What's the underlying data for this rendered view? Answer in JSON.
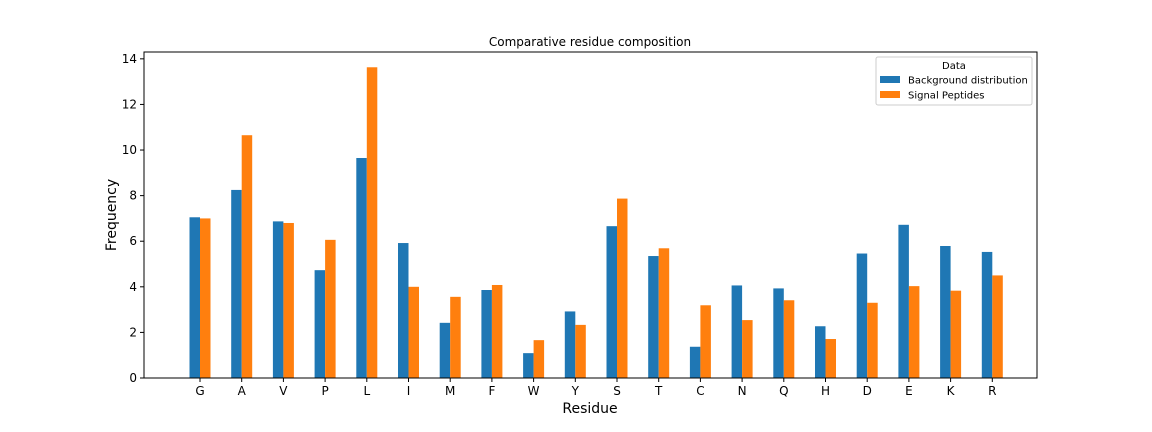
{
  "chart_data": {
    "type": "bar",
    "title": "Comparative residue composition",
    "xlabel": "Residue",
    "ylabel": "Frequency",
    "ylim": [
      0,
      14.3
    ],
    "yticks": [
      0,
      2,
      4,
      6,
      8,
      10,
      12,
      14
    ],
    "categories": [
      "G",
      "A",
      "V",
      "P",
      "L",
      "I",
      "M",
      "F",
      "W",
      "Y",
      "S",
      "T",
      "C",
      "N",
      "Q",
      "H",
      "D",
      "E",
      "K",
      "R"
    ],
    "series": [
      {
        "name": "Background distribution",
        "color": "#1f77b4",
        "values": [
          7.05,
          8.25,
          6.87,
          4.73,
          9.65,
          5.92,
          2.42,
          3.86,
          1.09,
          2.92,
          6.66,
          5.35,
          1.37,
          4.06,
          3.93,
          2.27,
          5.46,
          6.72,
          5.79,
          5.53
        ]
      },
      {
        "name": "Signal Peptides",
        "color": "#ff7f0e",
        "values": [
          7.0,
          10.65,
          6.8,
          6.06,
          13.63,
          4.0,
          3.56,
          4.08,
          1.66,
          2.33,
          7.87,
          5.69,
          3.19,
          2.54,
          3.41,
          1.71,
          3.3,
          4.03,
          3.83,
          4.5
        ]
      }
    ],
    "legend": {
      "title": "Data",
      "position": "top-right"
    },
    "grid": false
  }
}
